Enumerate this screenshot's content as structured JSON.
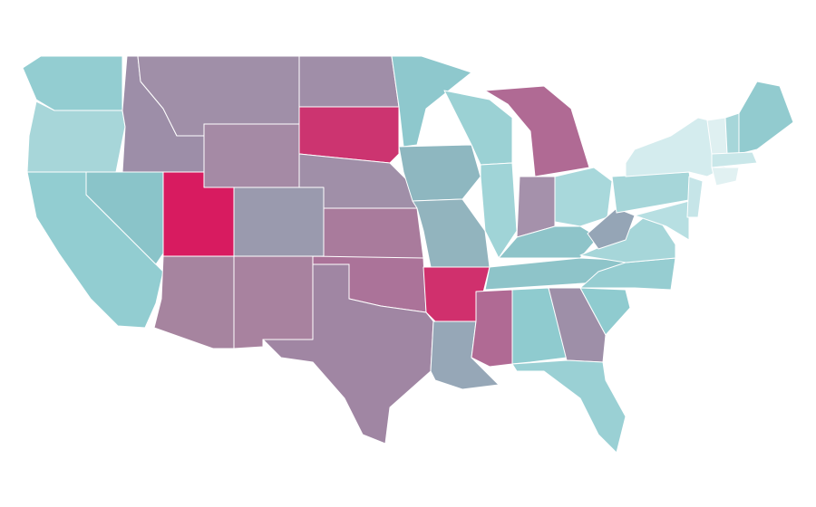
{
  "map": {
    "regions": [
      {
        "color": "#93cdd1"
      },
      {
        "color": "#a7d6d9"
      },
      {
        "color": "#92cdd1"
      },
      {
        "color": "#8ac4c9"
      },
      {
        "color": "#9d8ea8"
      },
      {
        "color": "#a08fa8"
      },
      {
        "color": "#a58aa5"
      },
      {
        "color": "#d81b60"
      },
      {
        "color": "#9a9aae"
      },
      {
        "color": "#a6849f"
      },
      {
        "color": "#a8829f"
      },
      {
        "color": "#a08ea8"
      },
      {
        "color": "#cc3470"
      },
      {
        "color": "#a08fa8"
      },
      {
        "color": "#a97b9c"
      },
      {
        "color": "#ab7399"
      },
      {
        "color": "#a086a3"
      },
      {
        "color": "#8ec8cd"
      },
      {
        "color": "#8eb7c0"
      },
      {
        "color": "#92b4be"
      },
      {
        "color": "#d0306d"
      },
      {
        "color": "#96a7b7"
      },
      {
        "color": "#9bd1d4"
      },
      {
        "color": "#a0d4d7"
      },
      {
        "color": "#b06a94"
      },
      {
        "color": "#a591ab"
      },
      {
        "color": "#a8d8db"
      },
      {
        "color": "#8ec4c9"
      },
      {
        "color": "#8ec4c9"
      },
      {
        "color": "#b06a94"
      },
      {
        "color": "#8fcbcf"
      },
      {
        "color": "#9e8fa8"
      },
      {
        "color": "#9ad0d4"
      },
      {
        "color": "#8fcbcf"
      },
      {
        "color": "#96cdd1"
      },
      {
        "color": "#a6d6d9"
      },
      {
        "color": "#95a5b6"
      },
      {
        "color": "#a6d6d9"
      },
      {
        "color": "#d4ecee"
      },
      {
        "color": "#b7dfe2"
      },
      {
        "color": "#c6e5e8"
      },
      {
        "color": "#dff0f1"
      },
      {
        "color": "#a6d6d9"
      },
      {
        "color": "#92cbcf"
      },
      {
        "color": "#c9e7e9"
      },
      {
        "color": "#e1f1f2"
      }
    ]
  }
}
